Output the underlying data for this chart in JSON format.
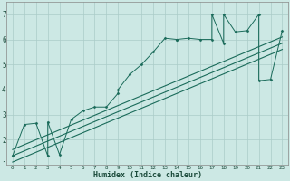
{
  "xlabel": "Humidex (Indice chaleur)",
  "ylabel": "",
  "bg_color": "#cce8e4",
  "grid_color": "#aaccc8",
  "line_color": "#1a6b5a",
  "xlim": [
    -0.5,
    23.5
  ],
  "ylim": [
    1,
    7.5
  ],
  "xticks": [
    0,
    1,
    2,
    3,
    4,
    5,
    6,
    7,
    8,
    9,
    10,
    11,
    12,
    13,
    14,
    15,
    16,
    17,
    18,
    19,
    20,
    21,
    22,
    23
  ],
  "yticks": [
    1,
    2,
    3,
    4,
    5,
    6,
    7
  ],
  "scatter_x": [
    0,
    1,
    2,
    3,
    3,
    4,
    5,
    6,
    7,
    8,
    9,
    9,
    10,
    11,
    12,
    13,
    14,
    14,
    15,
    16,
    17,
    17,
    18,
    18,
    19,
    20,
    21,
    21,
    22,
    23
  ],
  "scatter_y": [
    1.35,
    2.6,
    2.65,
    1.35,
    2.7,
    1.4,
    2.8,
    3.15,
    3.3,
    3.3,
    3.85,
    4.0,
    4.6,
    5.0,
    5.5,
    6.05,
    6.0,
    6.0,
    6.05,
    6.0,
    6.0,
    7.0,
    5.85,
    7.0,
    6.3,
    6.35,
    7.0,
    4.35,
    4.4,
    6.35
  ],
  "reg_line1": [
    [
      0,
      23
    ],
    [
      1.6,
      6.1
    ]
  ],
  "reg_line2": [
    [
      0,
      23
    ],
    [
      1.35,
      5.85
    ]
  ],
  "reg_line3": [
    [
      0,
      23
    ],
    [
      1.1,
      5.6
    ]
  ]
}
